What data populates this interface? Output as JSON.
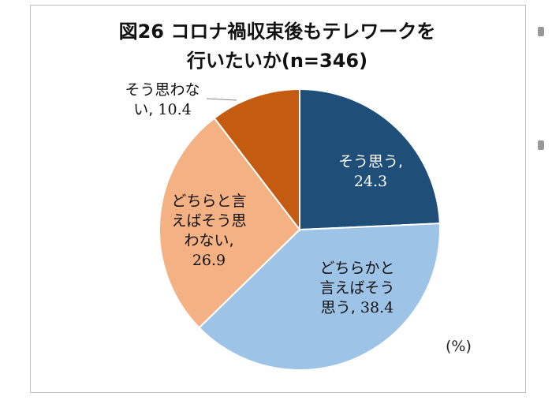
{
  "chart_data": {
    "type": "pie",
    "title_line1": "図26 コロナ禍収束後もテレワークを",
    "title_line2": "行いたいか(n=346)",
    "unit_label": "(%)",
    "slices": [
      {
        "label_line1": "そう思う,",
        "label_line2": "",
        "label_line3": "",
        "value_text": "24.3",
        "value": 24.3,
        "color": "#1f4e79",
        "text_color": "#ffffff"
      },
      {
        "label_line1": "どちらかと",
        "label_line2": "言えばそう",
        "label_line3": "思う,",
        "value_text": "38.4",
        "value": 38.4,
        "color": "#9dc3e6",
        "text_color": "#111111"
      },
      {
        "label_line1": "どちらと言",
        "label_line2": "えばそう思",
        "label_line3": "わない,",
        "value_text": "26.9",
        "value": 26.9,
        "color": "#f4b183",
        "text_color": "#111111"
      },
      {
        "label_line1": "そう思わな",
        "label_line2": "い,",
        "label_line3": "",
        "value_text": "10.4",
        "value": 10.4,
        "color": "#c55a11",
        "text_color": "#111111"
      }
    ]
  }
}
